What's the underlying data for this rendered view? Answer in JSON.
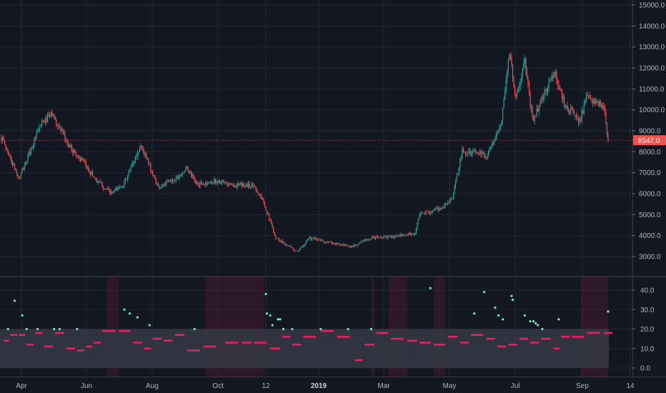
{
  "chart_data": [
    {
      "type": "candlestick",
      "x_labels": [
        "Apr",
        "Jun",
        "Aug",
        "Oct",
        "12",
        "2019",
        "Mar",
        "May",
        "Jul",
        "Sep",
        "14"
      ],
      "x_label_bold": "2019",
      "y_ticks": [
        "3000.0",
        "4000.0",
        "5000.0",
        "6000.0",
        "7000.0",
        "8000.0",
        "9000.0",
        "10000.0",
        "11000.0",
        "12000.0",
        "13000.0",
        "14000.0",
        "15000.0"
      ],
      "ylim": [
        2500,
        15000
      ],
      "last_price": "8547.0",
      "colors": {
        "up": "#26a69a",
        "down": "#ef5350",
        "price_tag": "#ef5350"
      },
      "anchors": [
        [
          "2018-03-20",
          8700
        ],
        [
          "2018-04-05",
          6700
        ],
        [
          "2018-04-25",
          9300
        ],
        [
          "2018-05-05",
          9800
        ],
        [
          "2018-05-20",
          8300
        ],
        [
          "2018-06-01",
          7600
        ],
        [
          "2018-06-15",
          6600
        ],
        [
          "2018-06-28",
          6000
        ],
        [
          "2018-07-10",
          6500
        ],
        [
          "2018-07-25",
          8300
        ],
        [
          "2018-08-10",
          6300
        ],
        [
          "2018-08-25",
          6700
        ],
        [
          "2018-09-05",
          7200
        ],
        [
          "2018-09-15",
          6400
        ],
        [
          "2018-10-01",
          6600
        ],
        [
          "2018-10-15",
          6400
        ],
        [
          "2018-11-05",
          6400
        ],
        [
          "2018-11-14",
          5600
        ],
        [
          "2018-11-25",
          3900
        ],
        [
          "2018-12-15",
          3200
        ],
        [
          "2018-12-25",
          3900
        ],
        [
          "2019-01-10",
          3700
        ],
        [
          "2019-02-01",
          3450
        ],
        [
          "2019-02-20",
          3900
        ],
        [
          "2019-03-15",
          3950
        ],
        [
          "2019-04-01",
          4100
        ],
        [
          "2019-04-05",
          5000
        ],
        [
          "2019-04-25",
          5300
        ],
        [
          "2019-05-05",
          5800
        ],
        [
          "2019-05-14",
          8000
        ],
        [
          "2019-05-25",
          8000
        ],
        [
          "2019-06-05",
          7800
        ],
        [
          "2019-06-18",
          9200
        ],
        [
          "2019-06-26",
          12800
        ],
        [
          "2019-07-02",
          10500
        ],
        [
          "2019-07-10",
          12300
        ],
        [
          "2019-07-17",
          9500
        ],
        [
          "2019-08-06",
          11800
        ],
        [
          "2019-08-15",
          10300
        ],
        [
          "2019-08-29",
          9500
        ],
        [
          "2019-09-05",
          10600
        ],
        [
          "2019-09-20",
          10100
        ],
        [
          "2019-09-24",
          8547
        ]
      ],
      "range": {
        "start": "2018-03-20",
        "end": "2019-09-24"
      }
    },
    {
      "type": "scatter",
      "y_ticks": [
        "0.0",
        "10.0",
        "20.0",
        "30.0",
        "40.0"
      ],
      "ylim": [
        -3,
        45
      ],
      "band": [
        0,
        20
      ],
      "colors": {
        "below_band": "#e91e63",
        "above_band": "#69f0ae",
        "band_fill": "#363a45",
        "highlight": "#b71c4a"
      },
      "highlight_ranges": [
        [
          "2018-06-24",
          "2018-07-05"
        ],
        [
          "2018-09-22",
          "2018-11-14"
        ],
        [
          "2019-02-20",
          "2019-02-23"
        ],
        [
          "2019-03-08",
          "2019-03-25"
        ],
        [
          "2019-04-18",
          "2019-04-28"
        ],
        [
          "2019-08-30",
          "2019-09-24"
        ]
      ],
      "series": [
        {
          "values": [
            [
              "2018-03-22",
              14
            ],
            [
              "2018-03-28",
              17
            ],
            [
              "2018-04-05",
              17
            ],
            [
              "2018-04-12",
              12
            ],
            [
              "2018-04-20",
              18
            ],
            [
              "2018-04-28",
              11
            ],
            [
              "2018-05-08",
              18
            ],
            [
              "2018-05-18",
              10
            ],
            [
              "2018-05-28",
              9
            ],
            [
              "2018-06-05",
              11
            ],
            [
              "2018-06-12",
              13
            ],
            [
              "2018-06-20",
              19
            ],
            [
              "2018-07-05",
              19
            ],
            [
              "2018-07-18",
              13
            ],
            [
              "2018-07-28",
              10
            ],
            [
              "2018-08-05",
              15
            ],
            [
              "2018-08-15",
              14
            ],
            [
              "2018-08-25",
              17
            ],
            [
              "2018-09-05",
              9
            ],
            [
              "2018-09-20",
              11
            ],
            [
              "2018-10-10",
              13
            ],
            [
              "2018-10-25",
              13
            ],
            [
              "2018-11-05",
              13
            ],
            [
              "2018-11-20",
              10
            ],
            [
              "2018-12-01",
              16
            ],
            [
              "2018-12-10",
              12
            ],
            [
              "2018-12-20",
              16
            ],
            [
              "2019-01-05",
              19
            ],
            [
              "2019-01-20",
              16
            ],
            [
              "2019-02-05",
              4
            ],
            [
              "2019-02-14",
              12
            ],
            [
              "2019-02-25",
              18
            ],
            [
              "2019-03-10",
              15
            ],
            [
              "2019-03-25",
              14
            ],
            [
              "2019-04-05",
              13
            ],
            [
              "2019-04-18",
              12
            ],
            [
              "2019-05-01",
              16
            ],
            [
              "2019-05-12",
              13
            ],
            [
              "2019-05-22",
              17
            ],
            [
              "2019-06-05",
              15
            ],
            [
              "2019-06-15",
              11
            ],
            [
              "2019-06-25",
              12
            ],
            [
              "2019-07-05",
              15
            ],
            [
              "2019-07-15",
              13
            ],
            [
              "2019-07-25",
              15
            ],
            [
              "2019-08-05",
              10
            ],
            [
              "2019-08-12",
              16
            ],
            [
              "2019-08-22",
              16
            ],
            [
              "2019-09-05",
              18
            ],
            [
              "2019-09-20",
              18
            ]
          ]
        },
        {
          "values": [
            [
              "2018-03-26",
              20
            ],
            [
              "2018-04-01",
              34.5
            ],
            [
              "2018-04-08",
              27
            ],
            [
              "2018-04-12",
              20
            ],
            [
              "2018-04-22",
              20
            ],
            [
              "2018-05-07",
              20
            ],
            [
              "2018-05-12",
              20
            ],
            [
              "2018-05-28",
              20
            ],
            [
              "2018-07-10",
              30
            ],
            [
              "2018-07-15",
              28
            ],
            [
              "2018-07-22",
              26
            ],
            [
              "2018-08-02",
              22
            ],
            [
              "2018-09-12",
              20
            ],
            [
              "2018-11-16",
              38
            ],
            [
              "2018-11-17",
              28
            ],
            [
              "2018-11-20",
              27
            ],
            [
              "2018-11-22",
              22
            ],
            [
              "2018-11-27",
              25
            ],
            [
              "2018-11-29",
              25
            ],
            [
              "2018-12-02",
              20
            ],
            [
              "2018-12-10",
              20
            ],
            [
              "2019-01-05",
              20
            ],
            [
              "2019-01-30",
              20
            ],
            [
              "2019-02-20",
              20
            ],
            [
              "2019-04-15",
              41
            ],
            [
              "2019-05-25",
              28
            ],
            [
              "2019-06-03",
              39
            ],
            [
              "2019-06-13",
              31
            ],
            [
              "2019-06-16",
              27
            ],
            [
              "2019-06-20",
              25
            ],
            [
              "2019-06-28",
              37
            ],
            [
              "2019-06-29",
              35
            ],
            [
              "2019-07-10",
              27
            ],
            [
              "2019-07-15",
              24
            ],
            [
              "2019-07-18",
              24
            ],
            [
              "2019-07-20",
              23
            ],
            [
              "2019-07-22",
              22
            ],
            [
              "2019-07-26",
              20
            ],
            [
              "2019-08-10",
              25
            ],
            [
              "2019-09-24",
              29
            ]
          ]
        }
      ]
    }
  ]
}
